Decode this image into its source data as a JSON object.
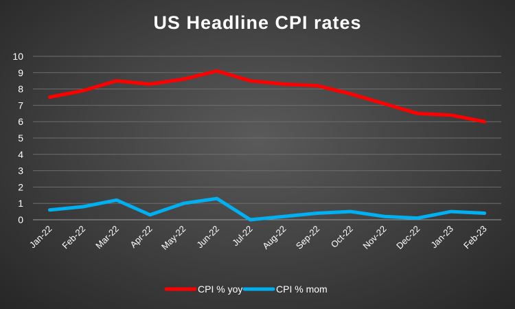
{
  "chart_data": {
    "type": "line",
    "title": "US Headline CPI rates",
    "categories": [
      "Jan-22",
      "Feb-22",
      "Mar-22",
      "Apr-22",
      "May-22",
      "Jun-22",
      "Jul-22",
      "Aug-22",
      "Sep-22",
      "Oct-22",
      "Nov-22",
      "Dec-22",
      "Jan-23",
      "Feb-23"
    ],
    "series": [
      {
        "name": "CPI % yoy",
        "color": "#ff0000",
        "values": [
          7.5,
          7.9,
          8.5,
          8.3,
          8.6,
          9.1,
          8.5,
          8.3,
          8.2,
          7.7,
          7.1,
          6.5,
          6.4,
          6.0
        ]
      },
      {
        "name": "CPI % mom",
        "color": "#00b0f0",
        "values": [
          0.6,
          0.8,
          1.2,
          0.3,
          1.0,
          1.3,
          0.0,
          0.2,
          0.4,
          0.5,
          0.2,
          0.1,
          0.5,
          0.4
        ]
      }
    ],
    "ylim": [
      0,
      10
    ],
    "yticks": [
      0,
      1,
      2,
      3,
      4,
      5,
      6,
      7,
      8,
      9,
      10
    ],
    "grid": true,
    "legend": "bottom"
  }
}
